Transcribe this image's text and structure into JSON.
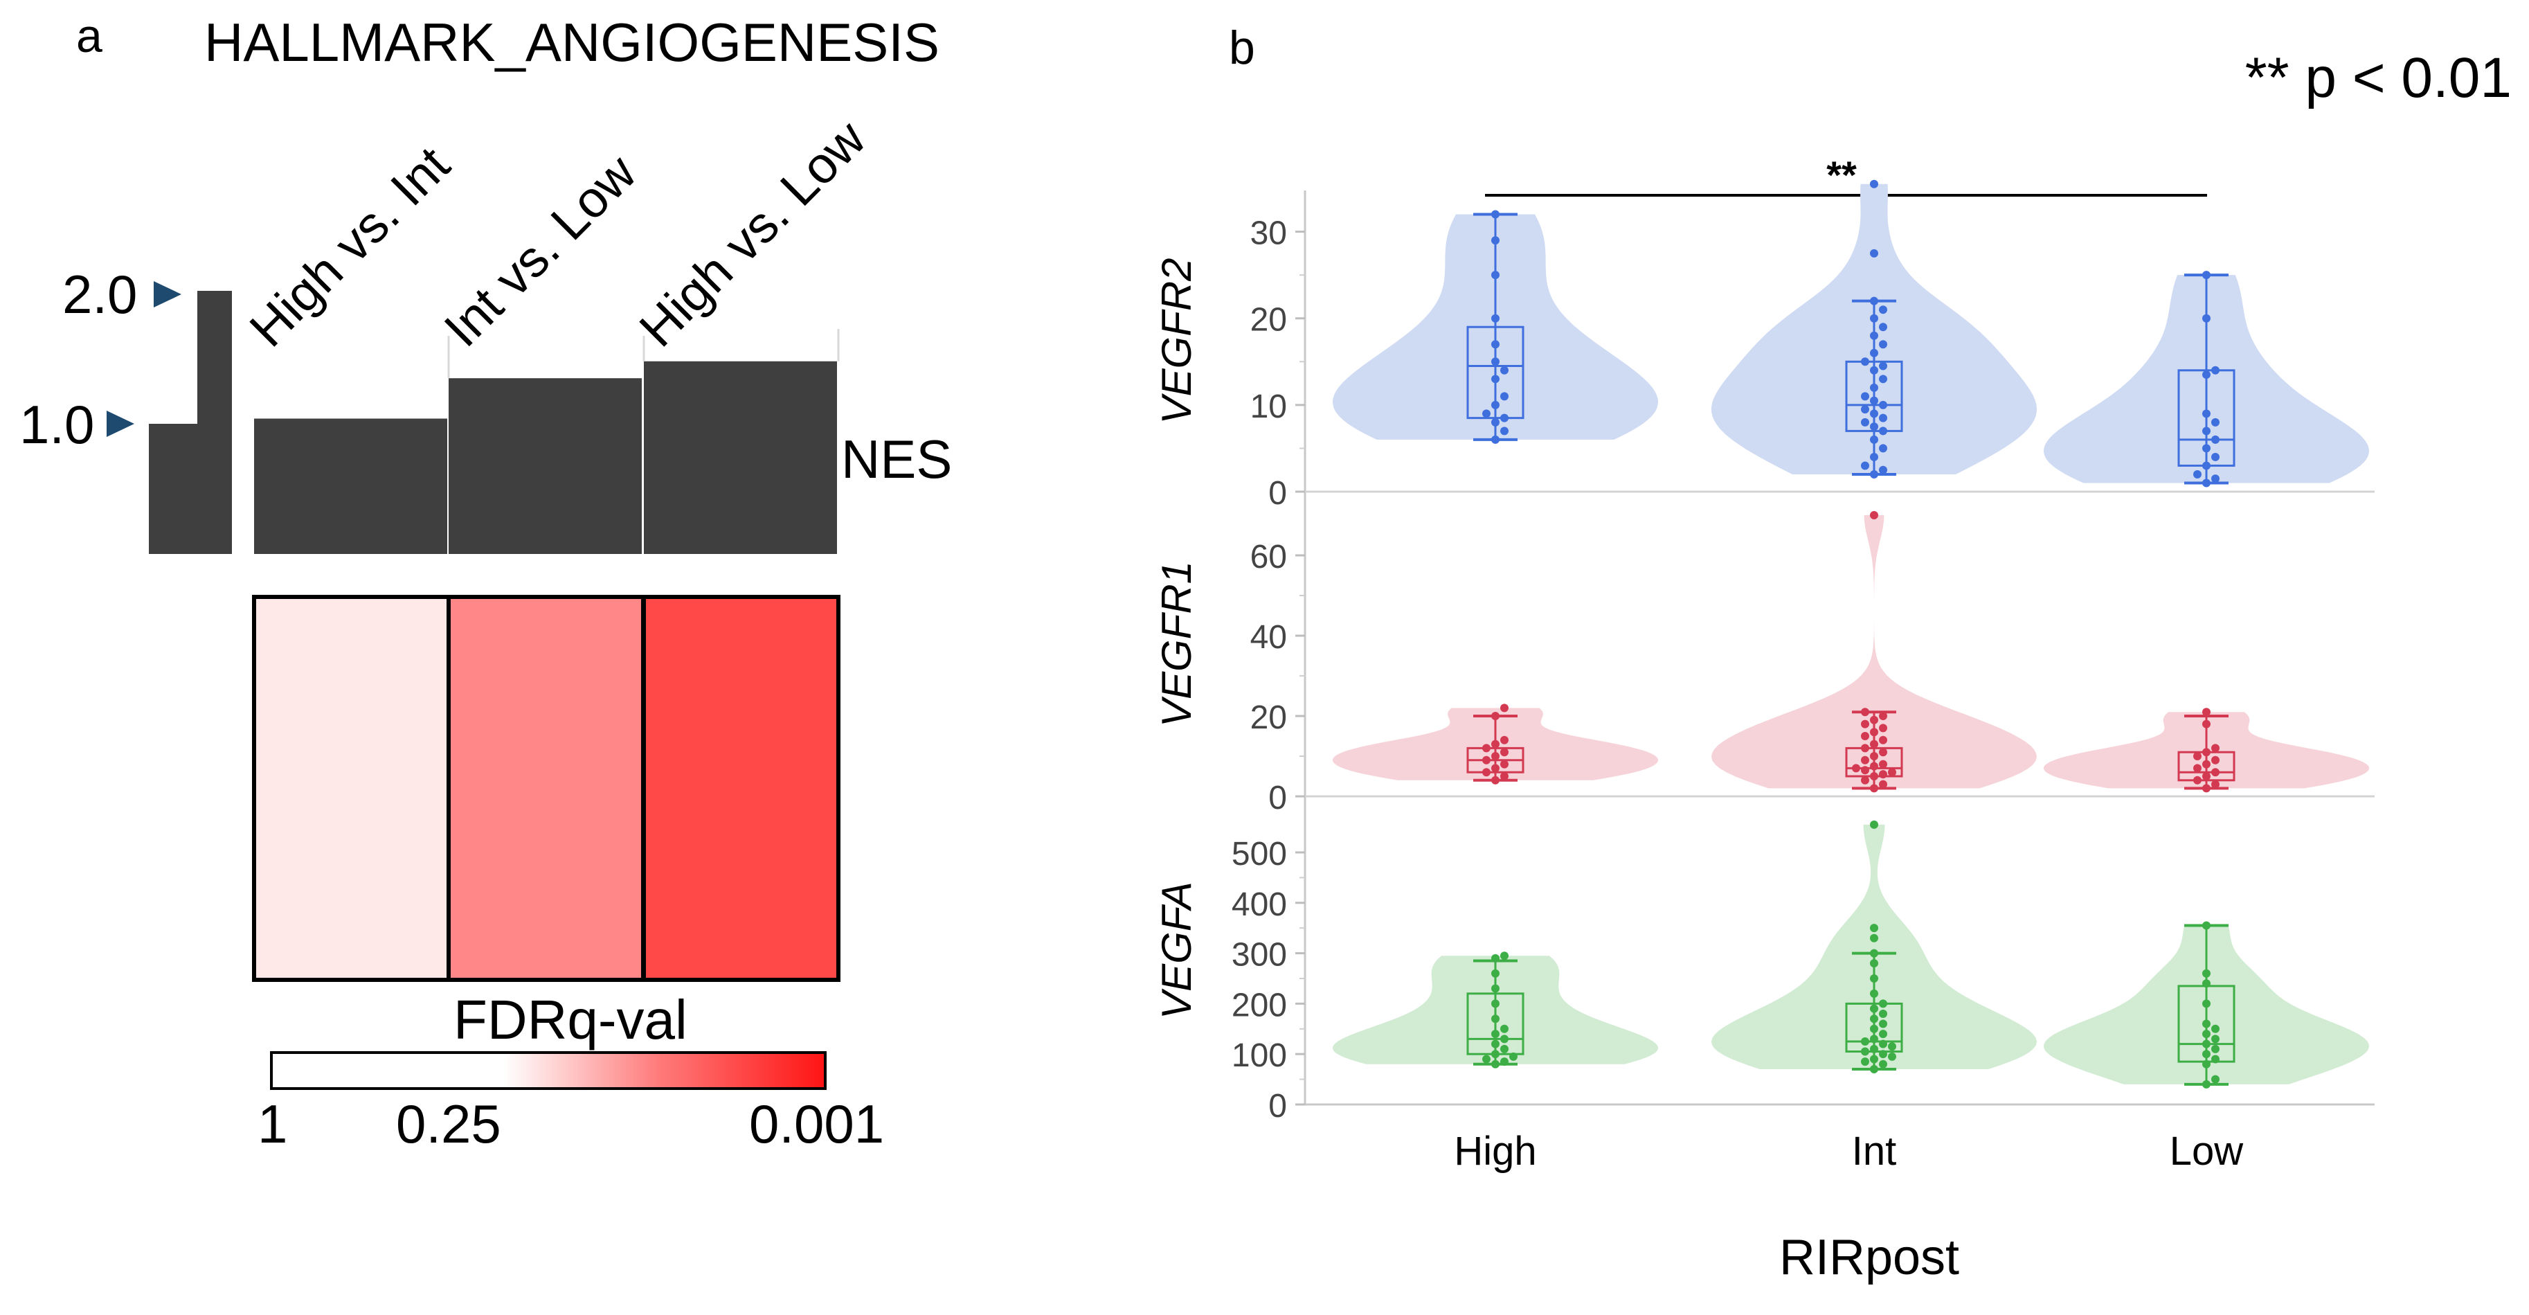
{
  "panel_a": {
    "letter": "a",
    "title": "HALLMARK_ANGIOGENESIS",
    "nes_label": "NES",
    "scale_ticks": [
      "2.0",
      "1.0"
    ],
    "legend_title": "FDRq-val",
    "legend_ticks": [
      "1",
      "0.25",
      "0.001"
    ],
    "colors": {
      "bar": "#3f3f3f",
      "fdr_low": "#ffffff",
      "fdr_high": "#ff1a1a"
    }
  },
  "panel_b": {
    "letter": "b",
    "significance_note": "** p < 0.01",
    "bracket_label": "**",
    "x_title": "RIRpost",
    "x_labels": [
      "High",
      "Int",
      "Low"
    ],
    "colors": {
      "VEGFR2": {
        "fill": "#cfdaf3",
        "line": "#3f6fdd"
      },
      "VEGFR1": {
        "fill": "#f6d3d8",
        "line": "#d33a52"
      },
      "VEGFA": {
        "fill": "#d2ebd3",
        "line": "#3dae45"
      }
    }
  },
  "chart_data": [
    {
      "type": "bar",
      "title": "HALLMARK_ANGIOGENESIS",
      "ylabel": "NES",
      "categories": [
        "High vs. Int",
        "Int vs. Low",
        "High vs. Low"
      ],
      "values": [
        1.04,
        1.35,
        1.48
      ],
      "ylim": [
        0,
        2.0
      ],
      "fdr_q": [
        0.9,
        0.12,
        0.01
      ],
      "color_scale": {
        "label": "FDRq-val",
        "ticks": [
          1,
          0.25,
          0.001
        ]
      }
    },
    {
      "type": "violin",
      "title": "",
      "xlabel": "RIRpost",
      "categories": [
        "High",
        "Int",
        "Low"
      ],
      "comparison": {
        "groups": [
          "High",
          "Low"
        ],
        "label": "**",
        "note": "** p < 0.01"
      },
      "panels": [
        {
          "gene": "VEGFR2",
          "ylim": [
            0,
            35
          ],
          "yticks": [
            0,
            10,
            20,
            30
          ],
          "groups": [
            {
              "name": "High",
              "whisker": [
                6,
                32
              ],
              "box": [
                8.5,
                19
              ],
              "median": 14.5,
              "points": [
                6,
                7,
                8,
                8.5,
                9,
                10,
                11,
                13,
                14,
                15,
                17,
                20,
                25,
                29,
                32
              ]
            },
            {
              "name": "Int",
              "whisker": [
                2,
                22
              ],
              "box": [
                7,
                15
              ],
              "median": 10,
              "points": [
                2,
                2.5,
                3,
                4,
                5,
                6,
                7,
                7.5,
                8,
                8.5,
                9,
                9.5,
                10,
                10.5,
                11,
                12,
                13,
                14,
                14.5,
                15,
                16,
                17,
                18,
                19,
                20,
                21,
                22,
                27.5,
                35.5
              ]
            },
            {
              "name": "Low",
              "whisker": [
                1,
                25
              ],
              "box": [
                3,
                14
              ],
              "median": 6,
              "points": [
                1,
                1.5,
                2,
                3,
                4,
                5,
                6,
                7,
                8,
                9,
                13.5,
                14,
                20,
                25
              ]
            }
          ]
        },
        {
          "gene": "VEGFR1",
          "ylim": [
            0,
            75
          ],
          "yticks": [
            0,
            20,
            40,
            60
          ],
          "groups": [
            {
              "name": "High",
              "whisker": [
                4,
                20
              ],
              "box": [
                6,
                12
              ],
              "median": 9,
              "points": [
                4,
                5,
                6,
                7,
                8,
                9,
                10,
                11,
                12,
                13,
                14,
                20,
                22
              ]
            },
            {
              "name": "Int",
              "whisker": [
                2,
                21
              ],
              "box": [
                5,
                12
              ],
              "median": 7,
              "points": [
                2,
                3,
                4,
                5,
                5.5,
                6,
                6.5,
                7,
                7.5,
                8,
                9,
                10,
                11,
                12,
                13,
                14,
                15,
                16,
                17,
                18,
                19,
                20,
                21,
                70
              ]
            },
            {
              "name": "Low",
              "whisker": [
                2,
                20
              ],
              "box": [
                4,
                11
              ],
              "median": 6,
              "points": [
                2,
                3,
                4,
                5,
                6,
                7,
                8,
                9,
                10,
                11,
                12,
                18,
                21
              ]
            }
          ]
        },
        {
          "gene": "VEGFA",
          "ylim": [
            0,
            570
          ],
          "yticks": [
            0,
            100,
            200,
            300,
            400,
            500
          ],
          "groups": [
            {
              "name": "High",
              "whisker": [
                80,
                285
              ],
              "box": [
                100,
                220
              ],
              "median": 130,
              "points": [
                80,
                85,
                90,
                95,
                100,
                110,
                120,
                130,
                140,
                150,
                170,
                200,
                230,
                260,
                290,
                295
              ]
            },
            {
              "name": "Int",
              "whisker": [
                70,
                300
              ],
              "box": [
                105,
                200
              ],
              "median": 125,
              "points": [
                70,
                80,
                85,
                90,
                95,
                100,
                105,
                110,
                115,
                120,
                125,
                130,
                140,
                150,
                160,
                170,
                180,
                190,
                200,
                220,
                250,
                280,
                300,
                330,
                350,
                555
              ]
            },
            {
              "name": "Low",
              "whisker": [
                40,
                355
              ],
              "box": [
                85,
                235
              ],
              "median": 120,
              "points": [
                40,
                50,
                80,
                90,
                100,
                110,
                120,
                130,
                140,
                150,
                160,
                200,
                240,
                260,
                355
              ]
            }
          ]
        }
      ]
    }
  ]
}
